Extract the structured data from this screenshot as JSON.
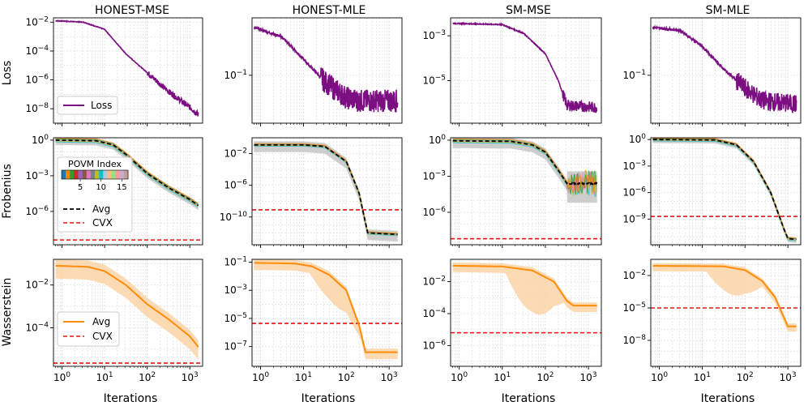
{
  "colors": {
    "loss": "#7b0f82",
    "avg_frobenius": "#000000",
    "cvx": "#ee1111",
    "wasserstein": "#ff8c0a",
    "wasserstein_band": "#fcd3a6",
    "grid": "#d4d4d4",
    "frob_band": "#c9c9c9"
  },
  "chart_data": {
    "type": "line",
    "layout": "3x4 grid of log-log subplots",
    "columns": [
      "HONEST-MSE",
      "HONEST-MLE",
      "SM-MSE",
      "SM-MLE"
    ],
    "row_labels": [
      "Loss",
      "Frobenius",
      "Wasserstein"
    ],
    "xlabel": "Iterations",
    "x_tick_labels": [
      "10^0",
      "10^1",
      "10^2",
      "10^3"
    ],
    "xlim_log10": [
      -0.2,
      3.3
    ],
    "legends": {
      "loss": [
        "Loss"
      ],
      "frobenius": [
        "Avg",
        "CVX"
      ],
      "colorbar_title": "POVM Index",
      "colorbar_ticks": [
        "5",
        "10",
        "15"
      ],
      "wasserstein": [
        "Avg",
        "CVX"
      ]
    },
    "panels": [
      {
        "row": "Loss",
        "col": "HONEST-MSE",
        "ylim_log10": [
          -9,
          -1.7
        ],
        "yticks_log10": [
          -2,
          -4,
          -6,
          -8
        ],
        "series": {
          "name": "Loss",
          "points": [
            [
              -0.15,
              -1.9
            ],
            [
              0.5,
              -2.0
            ],
            [
              1.0,
              -2.5
            ],
            [
              1.5,
              -4.2
            ],
            [
              2.0,
              -5.5
            ],
            [
              2.5,
              -6.8
            ],
            [
              3.0,
              -7.9
            ],
            [
              3.2,
              -8.4
            ]
          ],
          "noise_after": 2.0,
          "noise_amp": 0.2
        }
      },
      {
        "row": "Loss",
        "col": "HONEST-MLE",
        "ylim_log10": [
          -1.75,
          -0.1
        ],
        "yticks_log10": [
          -1
        ],
        "series": {
          "name": "Loss",
          "points": [
            [
              -0.15,
              -0.25
            ],
            [
              0.5,
              -0.4
            ],
            [
              1.0,
              -0.75
            ],
            [
              1.5,
              -1.1
            ],
            [
              2.0,
              -1.35
            ],
            [
              2.3,
              -1.4
            ],
            [
              3.2,
              -1.4
            ]
          ],
          "noise_after": 1.4,
          "noise_amp": 0.18
        }
      },
      {
        "row": "Loss",
        "col": "SM-MSE",
        "ylim_log10": [
          -6.9,
          -2.2
        ],
        "yticks_log10": [
          -3,
          -5
        ],
        "series": {
          "name": "Loss",
          "points": [
            [
              -0.15,
              -2.45
            ],
            [
              1.0,
              -2.5
            ],
            [
              1.5,
              -2.9
            ],
            [
              2.0,
              -3.8
            ],
            [
              2.3,
              -5.0
            ],
            [
              2.5,
              -6.1
            ],
            [
              3.2,
              -6.2
            ]
          ],
          "noise_after": 2.4,
          "noise_amp": 0.25
        }
      },
      {
        "row": "Loss",
        "col": "SM-MLE",
        "ylim_log10": [
          -1.75,
          -0.1
        ],
        "yticks_log10": [
          -1
        ],
        "series": {
          "name": "Loss",
          "points": [
            [
              -0.15,
              -0.25
            ],
            [
              0.5,
              -0.3
            ],
            [
              1.0,
              -0.55
            ],
            [
              1.5,
              -0.9
            ],
            [
              2.0,
              -1.2
            ],
            [
              2.4,
              -1.4
            ],
            [
              3.2,
              -1.45
            ]
          ],
          "noise_after": 1.8,
          "noise_amp": 0.15
        }
      },
      {
        "row": "Frobenius",
        "col": "HONEST-MSE",
        "ylim_log10": [
          -8.8,
          0.2
        ],
        "yticks_log10": [
          0,
          -3,
          -6
        ],
        "avg": {
          "name": "Avg",
          "points": [
            [
              -0.15,
              0.0
            ],
            [
              0.8,
              -0.05
            ],
            [
              1.2,
              -0.4
            ],
            [
              1.5,
              -1.2
            ],
            [
              2.0,
              -2.8
            ],
            [
              2.5,
              -4.0
            ],
            [
              3.0,
              -5.0
            ],
            [
              3.2,
              -5.5
            ]
          ]
        },
        "cvx": -8.4,
        "band_width": 0.4,
        "legend": "bottom-left",
        "has_colorbar": true
      },
      {
        "row": "Frobenius",
        "col": "HONEST-MLE",
        "ylim_log10": [
          -13.5,
          0.0
        ],
        "yticks_log10": [
          -2,
          -6,
          -10
        ],
        "avg": {
          "name": "Avg",
          "points": [
            [
              -0.15,
              -0.9
            ],
            [
              1.0,
              -0.9
            ],
            [
              1.5,
              -1.1
            ],
            [
              2.0,
              -3.0
            ],
            [
              2.3,
              -7.0
            ],
            [
              2.5,
              -12.0
            ],
            [
              3.2,
              -12.2
            ]
          ]
        },
        "cvx": -9.1,
        "band_width": 0.9
      },
      {
        "row": "Frobenius",
        "col": "SM-MSE",
        "ylim_log10": [
          -8.7,
          0.2
        ],
        "yticks_log10": [
          0,
          -3,
          -6
        ],
        "avg": {
          "name": "Avg",
          "points": [
            [
              -0.15,
              -0.05
            ],
            [
              1.2,
              -0.1
            ],
            [
              1.7,
              -0.4
            ],
            [
              2.0,
              -1.0
            ],
            [
              2.3,
              -2.5
            ],
            [
              2.5,
              -3.6
            ],
            [
              3.2,
              -3.6
            ]
          ]
        },
        "cvx": -8.2,
        "band_width": 0.6,
        "noise_after": 2.5,
        "noise_amp": 1.0
      },
      {
        "row": "Frobenius",
        "col": "SM-MLE",
        "ylim_log10": [
          -11.9,
          0.2
        ],
        "yticks_log10": [
          0,
          -3,
          -6,
          -9
        ],
        "avg": {
          "name": "Avg",
          "points": [
            [
              -0.15,
              0.0
            ],
            [
              1.3,
              -0.05
            ],
            [
              1.8,
              -0.6
            ],
            [
              2.2,
              -2.5
            ],
            [
              2.6,
              -6.0
            ],
            [
              2.9,
              -10.0
            ],
            [
              3.0,
              -11.2
            ],
            [
              3.2,
              -11.3
            ]
          ]
        },
        "cvx": -8.7,
        "band_width": 0.4
      },
      {
        "row": "Wasserstein",
        "col": "HONEST-MSE",
        "ylim_log10": [
          -5.8,
          -0.8
        ],
        "yticks_log10": [
          -2,
          -4
        ],
        "avg": {
          "name": "Avg",
          "points": [
            [
              -0.15,
              -1.1
            ],
            [
              0.6,
              -1.15
            ],
            [
              1.0,
              -1.35
            ],
            [
              1.5,
              -2.0
            ],
            [
              2.0,
              -2.9
            ],
            [
              2.5,
              -3.6
            ],
            [
              3.0,
              -4.4
            ],
            [
              3.2,
              -4.9
            ]
          ]
        },
        "cvx": -5.65,
        "band_width": 0.6,
        "legend": "bottom-left"
      },
      {
        "row": "Wasserstein",
        "col": "HONEST-MLE",
        "ylim_log10": [
          -8.4,
          -0.8
        ],
        "yticks_log10": [
          -1,
          -3,
          -5,
          -7
        ],
        "avg": {
          "name": "Avg",
          "points": [
            [
              -0.15,
              -1.05
            ],
            [
              0.8,
              -1.1
            ],
            [
              1.2,
              -1.3
            ],
            [
              1.6,
              -1.9
            ],
            [
              2.0,
              -3.0
            ],
            [
              2.3,
              -5.5
            ],
            [
              2.45,
              -7.4
            ],
            [
              3.2,
              -7.4
            ]
          ]
        },
        "cvx": -5.35,
        "band_width": 0.5,
        "band_drop": 1.8
      },
      {
        "row": "Wasserstein",
        "col": "SM-MSE",
        "ylim_log10": [
          -7.3,
          -0.6
        ],
        "yticks_log10": [
          -2,
          -4,
          -6
        ],
        "avg": {
          "name": "Avg",
          "points": [
            [
              -0.15,
              -1.0
            ],
            [
              1.0,
              -1.05
            ],
            [
              1.7,
              -1.3
            ],
            [
              2.2,
              -2.0
            ],
            [
              2.5,
              -3.2
            ],
            [
              2.65,
              -3.5
            ],
            [
              3.2,
              -3.5
            ]
          ]
        },
        "cvx": -5.2,
        "band_width": 0.4,
        "band_drop": 2.6
      },
      {
        "row": "Wasserstein",
        "col": "SM-MLE",
        "ylim_log10": [
          -10.4,
          -0.5
        ],
        "yticks_log10": [
          -2,
          -5,
          -8
        ],
        "avg": {
          "name": "Avg",
          "points": [
            [
              -0.15,
              -1.1
            ],
            [
              1.5,
              -1.15
            ],
            [
              2.0,
              -1.5
            ],
            [
              2.4,
              -2.5
            ],
            [
              2.7,
              -4.0
            ],
            [
              2.9,
              -5.8
            ],
            [
              3.0,
              -6.7
            ],
            [
              3.2,
              -6.7
            ]
          ]
        },
        "cvx": -5.0,
        "band_width": 0.5,
        "band_drop": 2.5
      }
    ]
  }
}
